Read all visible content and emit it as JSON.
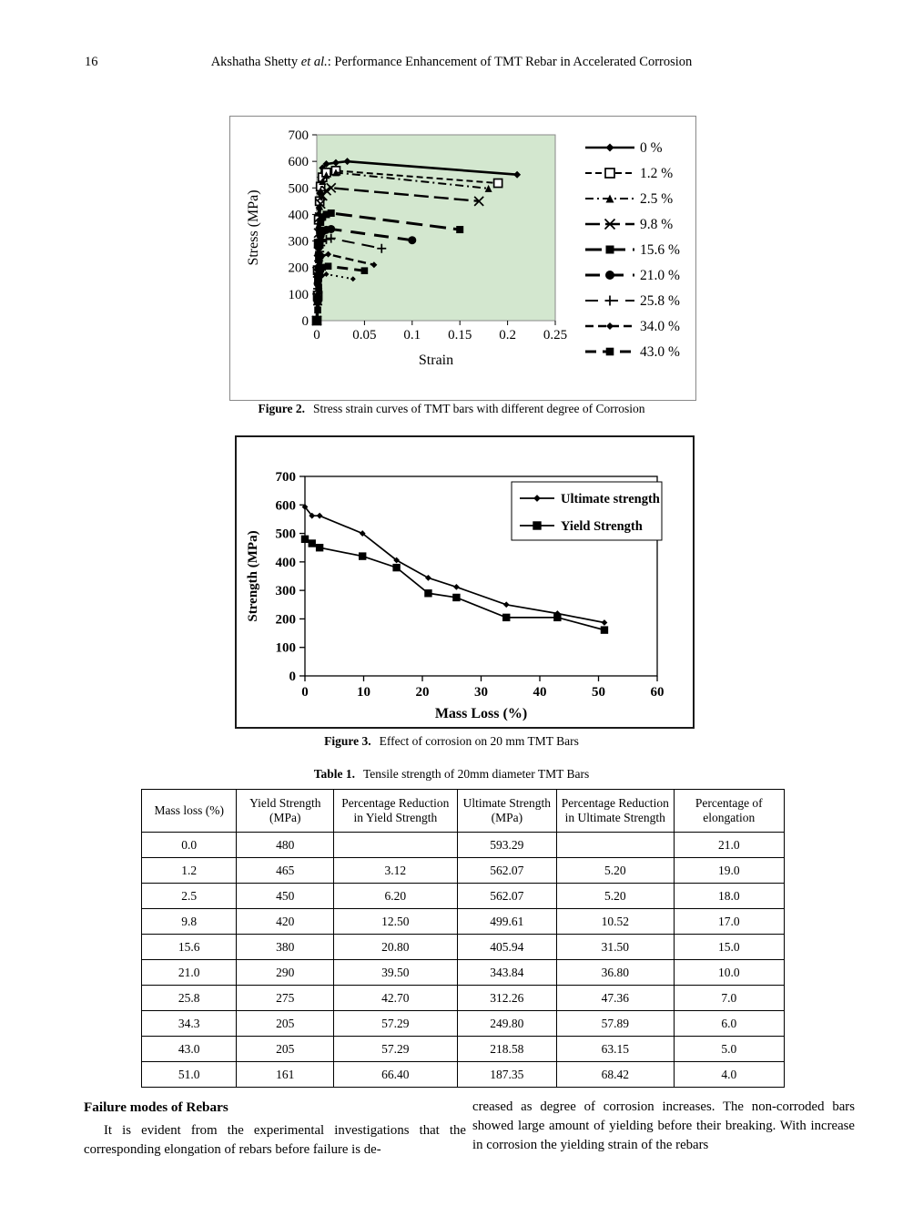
{
  "page": {
    "number": "16",
    "header_author": "Akshatha Shetty ",
    "header_etal": "et al.",
    "header_rest": ":   Performance Enhancement of TMT Rebar in Accelerated Corrosion"
  },
  "figure2": {
    "caption_label": "Figure 2.",
    "caption_text": "Stress strain curves of TMT bars with different degree of Corrosion"
  },
  "figure3": {
    "caption_label": "Figure 3.",
    "caption_text": "Effect of corrosion on 20 mm TMT Bars"
  },
  "table1": {
    "title_label": "Table 1.",
    "title_text": "Tensile strength of 20mm diameter TMT Bars",
    "headers": [
      "Mass loss (%)",
      "Yield Strength (MPa)",
      "Percentage Reduction in Yield Strength",
      "Ultimate Strength (MPa)",
      "Percentage Reduction in Ultimate Strength",
      "Percentage of elongation"
    ],
    "rows": [
      [
        "0.0",
        "480",
        "",
        "593.29",
        "",
        "21.0"
      ],
      [
        "1.2",
        "465",
        "3.12",
        "562.07",
        "5.20",
        "19.0"
      ],
      [
        "2.5",
        "450",
        "6.20",
        "562.07",
        "5.20",
        "18.0"
      ],
      [
        "9.8",
        "420",
        "12.50",
        "499.61",
        "10.52",
        "17.0"
      ],
      [
        "15.6",
        "380",
        "20.80",
        "405.94",
        "31.50",
        "15.0"
      ],
      [
        "21.0",
        "290",
        "39.50",
        "343.84",
        "36.80",
        "10.0"
      ],
      [
        "25.8",
        "275",
        "42.70",
        "312.26",
        "47.36",
        "7.0"
      ],
      [
        "34.3",
        "205",
        "57.29",
        "249.80",
        "57.89",
        "6.0"
      ],
      [
        "43.0",
        "205",
        "57.29",
        "218.58",
        "63.15",
        "5.0"
      ],
      [
        "51.0",
        "161",
        "66.40",
        "187.35",
        "68.42",
        "4.0"
      ]
    ]
  },
  "body": {
    "heading": "Failure modes of Rebars",
    "left_text": "It is evident from the experimental investigations that the corresponding elongation of rebars before failure is de-",
    "right_text": "creased as degree of corrosion increases. The non-corroded bars showed large amount of yielding before their breaking. With increase in corrosion the yielding strain of the rebars"
  },
  "chart_data": [
    {
      "type": "line",
      "title": "",
      "xlabel": "Strain",
      "ylabel": "Stress (MPa)",
      "xlim": [
        0,
        0.25
      ],
      "ylim": [
        0,
        700
      ],
      "xticks": [
        "0",
        "0.05",
        "0.1",
        "0.15",
        "0.2",
        "0.25"
      ],
      "yticks": [
        "0",
        "100",
        "200",
        "300",
        "400",
        "500",
        "600",
        "700"
      ],
      "plot_bg": "#d3e7cf",
      "line_color": "#000000",
      "legend_position": "right",
      "series": [
        {
          "name": "0 %",
          "marker": "diamond",
          "msize": 4,
          "dash": "",
          "width": 2.6,
          "points": [
            [
              0,
              0
            ],
            [
              0.001,
              100
            ],
            [
              0.001,
              200
            ],
            [
              0.002,
              300
            ],
            [
              0.002,
              400
            ],
            [
              0.003,
              480
            ],
            [
              0.004,
              540
            ],
            [
              0.006,
              575
            ],
            [
              0.01,
              590
            ],
            [
              0.02,
              595
            ],
            [
              0.032,
              600
            ],
            [
              0.21,
              550
            ]
          ]
        },
        {
          "name": "1.2 %",
          "marker": "square-open",
          "msize": 4.5,
          "dash": "7 4",
          "width": 2,
          "points": [
            [
              0,
              0
            ],
            [
              0.001,
              95
            ],
            [
              0.001,
              190
            ],
            [
              0.002,
              290
            ],
            [
              0.002,
              380
            ],
            [
              0.003,
              450
            ],
            [
              0.004,
              505
            ],
            [
              0.006,
              540
            ],
            [
              0.01,
              558
            ],
            [
              0.02,
              565
            ],
            [
              0.19,
              518
            ]
          ]
        },
        {
          "name": "2.5 %",
          "marker": "triangle",
          "msize": 4,
          "dash": "9 4 2 4",
          "width": 2,
          "points": [
            [
              0,
              0
            ],
            [
              0.001,
              90
            ],
            [
              0.001,
              185
            ],
            [
              0.002,
              280
            ],
            [
              0.002,
              360
            ],
            [
              0.003,
              430
            ],
            [
              0.004,
              490
            ],
            [
              0.006,
              525
            ],
            [
              0.01,
              548
            ],
            [
              0.02,
              558
            ],
            [
              0.18,
              498
            ]
          ]
        },
        {
          "name": "9.8 %",
          "marker": "x",
          "msize": 5,
          "dash": "16 6",
          "width": 2.4,
          "points": [
            [
              0,
              0
            ],
            [
              0.001,
              90
            ],
            [
              0.001,
              180
            ],
            [
              0.002,
              260
            ],
            [
              0.002,
              330
            ],
            [
              0.003,
              390
            ],
            [
              0.004,
              440
            ],
            [
              0.006,
              470
            ],
            [
              0.01,
              490
            ],
            [
              0.015,
              500
            ],
            [
              0.17,
              450
            ]
          ]
        },
        {
          "name": "15.6 %",
          "marker": "square",
          "msize": 4,
          "dash": "18 8",
          "width": 3,
          "points": [
            [
              0,
              0
            ],
            [
              0.001,
              80
            ],
            [
              0.001,
              160
            ],
            [
              0.002,
              230
            ],
            [
              0.002,
              290
            ],
            [
              0.003,
              340
            ],
            [
              0.004,
              370
            ],
            [
              0.006,
              390
            ],
            [
              0.01,
              400
            ],
            [
              0.015,
              405
            ],
            [
              0.15,
              343
            ]
          ]
        },
        {
          "name": "21.0 %",
          "marker": "circle",
          "msize": 4.5,
          "dash": "16 10",
          "width": 3,
          "points": [
            [
              0,
              0
            ],
            [
              0.001,
              70
            ],
            [
              0.001,
              140
            ],
            [
              0.002,
              200
            ],
            [
              0.002,
              250
            ],
            [
              0.003,
              295
            ],
            [
              0.004,
              320
            ],
            [
              0.006,
              335
            ],
            [
              0.01,
              342
            ],
            [
              0.015,
              345
            ],
            [
              0.1,
              303
            ]
          ]
        },
        {
          "name": "25.8 %",
          "marker": "plus",
          "msize": 5,
          "dash": "14 8",
          "width": 2,
          "points": [
            [
              0,
              0
            ],
            [
              0.001,
              60
            ],
            [
              0.001,
              120
            ],
            [
              0.002,
              180
            ],
            [
              0.002,
              225
            ],
            [
              0.003,
              260
            ],
            [
              0.004,
              283
            ],
            [
              0.006,
              298
            ],
            [
              0.01,
              306
            ],
            [
              0.015,
              310
            ],
            [
              0.068,
              272
            ]
          ]
        },
        {
          "name": "34.0 %",
          "marker": "diamond",
          "msize": 3.5,
          "dash": "9 5",
          "width": 2.4,
          "points": [
            [
              0,
              0
            ],
            [
              0.001,
              50
            ],
            [
              0.001,
              100
            ],
            [
              0.002,
              150
            ],
            [
              0.002,
              190
            ],
            [
              0.003,
              218
            ],
            [
              0.004,
              234
            ],
            [
              0.006,
              244
            ],
            [
              0.012,
              250
            ],
            [
              0.06,
              210
            ]
          ]
        },
        {
          "name": "43.0 %",
          "marker": "square",
          "msize": 3.8,
          "dash": "12 7",
          "width": 3,
          "points": [
            [
              0,
              0
            ],
            [
              0.001,
              40
            ],
            [
              0.001,
              85
            ],
            [
              0.002,
              125
            ],
            [
              0.002,
              158
            ],
            [
              0.003,
              183
            ],
            [
              0.004,
              194
            ],
            [
              0.006,
              201
            ],
            [
              0.012,
              205
            ],
            [
              0.05,
              188
            ]
          ]
        },
        {
          "name": "",
          "marker": "diamond",
          "msize": 3,
          "dash": "2 4",
          "width": 2,
          "points": [
            [
              0,
              0
            ],
            [
              0.001,
              35
            ],
            [
              0.001,
              70
            ],
            [
              0.002,
              105
            ],
            [
              0.002,
              133
            ],
            [
              0.003,
              153
            ],
            [
              0.004,
              163
            ],
            [
              0.006,
              170
            ],
            [
              0.01,
              175
            ],
            [
              0.038,
              157
            ]
          ]
        }
      ]
    },
    {
      "type": "line",
      "title": "",
      "xlabel": "Mass Loss (%)",
      "ylabel": "Strength  (MPa)",
      "xlim": [
        0,
        60
      ],
      "ylim": [
        0,
        700
      ],
      "xticks": [
        "0",
        "10",
        "20",
        "30",
        "40",
        "50",
        "60"
      ],
      "yticks": [
        "0",
        "100",
        "200",
        "300",
        "400",
        "500",
        "600",
        "700"
      ],
      "plot_bg": "#ffffff",
      "line_color": "#000000",
      "legend_position": "inside-top-right",
      "x": [
        0,
        1.2,
        2.5,
        9.8,
        15.6,
        21.0,
        25.8,
        34.3,
        43.0,
        51.0
      ],
      "series": [
        {
          "name": "Ultimate strength",
          "marker": "diamond",
          "msize": 3.4,
          "width": 1.7,
          "values": [
            593,
            562,
            562,
            500,
            406,
            344,
            312,
            250,
            219,
            187
          ]
        },
        {
          "name": "Yield Strength",
          "marker": "square",
          "msize": 4.2,
          "width": 1.7,
          "values": [
            480,
            465,
            450,
            420,
            380,
            290,
            275,
            205,
            205,
            161
          ]
        }
      ]
    }
  ]
}
